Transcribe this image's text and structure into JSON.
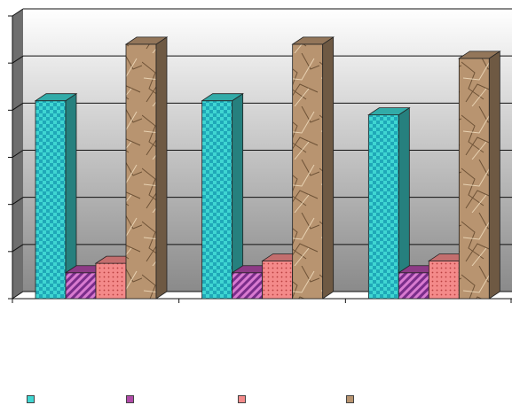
{
  "chart_data": {
    "type": "bar",
    "style": "3d-column",
    "categories": [
      "",
      "",
      ""
    ],
    "series": [
      {
        "values": [
          4.2,
          4.2,
          3.9
        ],
        "color": "#3fd6d2",
        "pattern": "checkerboard"
      },
      {
        "values": [
          0.55,
          0.55,
          0.55
        ],
        "color": "#b04aa8",
        "pattern": "diagonal-stripes"
      },
      {
        "values": [
          0.75,
          0.8,
          0.8
        ],
        "color": "#f48a8a",
        "pattern": "dots"
      },
      {
        "values": [
          5.4,
          5.4,
          5.1
        ],
        "color": "#b89470",
        "pattern": "crumpled-paper"
      }
    ],
    "ylim": [
      0,
      6
    ],
    "grid": true,
    "legend": "bottom",
    "title": "",
    "xlabel": "",
    "ylabel": ""
  }
}
